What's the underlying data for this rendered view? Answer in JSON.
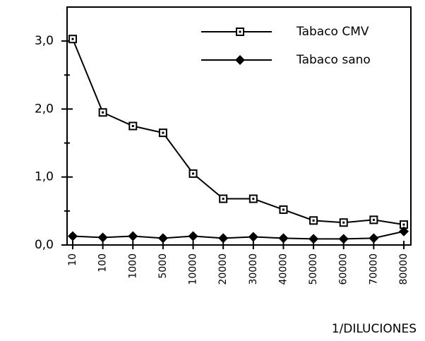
{
  "chart_data": {
    "type": "line",
    "xlabel": "1/DILUCIONES",
    "categories": [
      "10",
      "100",
      "1000",
      "5000",
      "10000",
      "20000",
      "30000",
      "40000",
      "50000",
      "60000",
      "70000",
      "80000"
    ],
    "series": [
      {
        "name": "Tabaco CMV",
        "color": "#000000",
        "marker": "square",
        "values": [
          3.03,
          1.95,
          1.75,
          1.65,
          1.05,
          0.68,
          0.68,
          0.52,
          0.36,
          0.33,
          0.37,
          0.3
        ]
      },
      {
        "name": "Tabaco sano",
        "color": "#000000",
        "marker": "diamond",
        "values": [
          0.13,
          0.11,
          0.13,
          0.1,
          0.13,
          0.1,
          0.12,
          0.1,
          0.09,
          0.09,
          0.1,
          0.2
        ]
      }
    ],
    "ylim": [
      0,
      3.5
    ],
    "yticks": [
      {
        "value": 0,
        "label": "0,0"
      },
      {
        "value": 1,
        "label": "1,0"
      },
      {
        "value": 2,
        "label": "2,0"
      },
      {
        "value": 3,
        "label": "3,0"
      }
    ],
    "y_minor_ticks": [
      0.5,
      1.5,
      2.5
    ],
    "legend": "upper right",
    "grid": false
  }
}
